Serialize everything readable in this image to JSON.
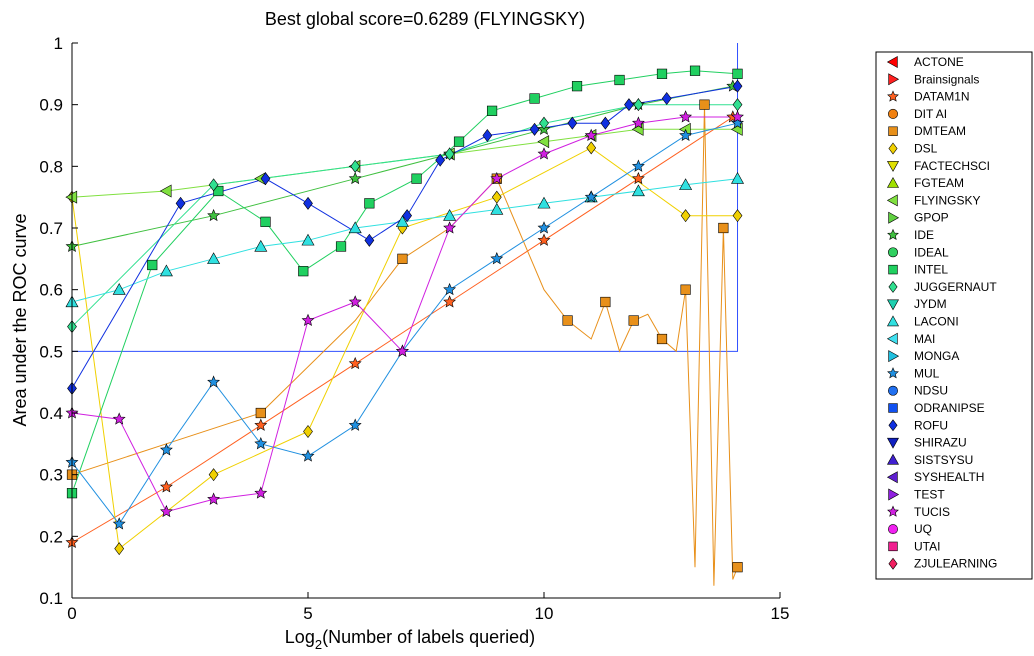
{
  "chart_data": {
    "type": "line",
    "title": "Best global score=0.6289 (FLYINGSKY)",
    "xlabel_main": "Log",
    "xlabel_sub": "2",
    "xlabel_rest": "(Number of labels queried)",
    "ylabel": "Area under the ROC curve",
    "xlim": [
      0,
      15
    ],
    "ylim": [
      0.1,
      1
    ],
    "xticks": [
      0,
      5,
      10,
      15
    ],
    "yticks": [
      0.1,
      0.2,
      0.3,
      0.4,
      0.5,
      0.6,
      0.7,
      0.8,
      0.9,
      1
    ],
    "ytick_labels": [
      "0.1",
      "0.2",
      "0.3",
      "0.4",
      "0.5",
      "0.6",
      "0.7",
      "0.8",
      "0.9",
      "1"
    ],
    "grid": false,
    "legend_position": "right-outside",
    "baseline": {
      "y": 0.5,
      "x_end": 14.1,
      "color": "#3050ff"
    },
    "series": [
      {
        "name": "ACTONE",
        "color": "#ff0000",
        "marker": "tri-left",
        "x": [],
        "y": []
      },
      {
        "name": "Brainsignals",
        "color": "#ff2020",
        "marker": "tri-right",
        "x": [],
        "y": []
      },
      {
        "name": "DATAM1N",
        "color": "#ff6020",
        "marker": "star",
        "x": [
          0,
          2,
          4,
          6,
          8,
          10,
          12,
          14
        ],
        "y": [
          0.19,
          0.28,
          0.38,
          0.48,
          0.58,
          0.68,
          0.78,
          0.88
        ]
      },
      {
        "name": "DIT AI",
        "color": "#f08010",
        "marker": "circle",
        "x": [],
        "y": []
      },
      {
        "name": "DMTEAM",
        "color": "#e8901a",
        "marker": "square",
        "x": [
          0,
          2,
          4,
          6,
          7,
          8,
          9,
          10,
          10.5,
          11,
          11.3,
          11.6,
          11.9,
          12.2,
          12.5,
          12.8,
          13.0,
          13.2,
          13.4,
          13.6,
          13.8,
          14.0,
          14.1
        ],
        "y": [
          0.3,
          0.35,
          0.4,
          0.55,
          0.65,
          0.7,
          0.78,
          0.6,
          0.55,
          0.52,
          0.58,
          0.5,
          0.55,
          0.56,
          0.52,
          0.5,
          0.6,
          0.15,
          0.9,
          0.12,
          0.7,
          0.13,
          0.15
        ]
      },
      {
        "name": "DSL",
        "color": "#f0d000",
        "marker": "diamond",
        "x": [
          0,
          1,
          3,
          5,
          7,
          9,
          11,
          13,
          14.1
        ],
        "y": [
          0.75,
          0.18,
          0.3,
          0.37,
          0.7,
          0.75,
          0.83,
          0.72,
          0.72
        ]
      },
      {
        "name": "FACTECHSCI",
        "color": "#e0e000",
        "marker": "tri-down",
        "x": [],
        "y": []
      },
      {
        "name": "FGTEAM",
        "color": "#a0e000",
        "marker": "tri-up",
        "x": [],
        "y": []
      },
      {
        "name": "FLYINGSKY",
        "color": "#80e040",
        "marker": "tri-left",
        "x": [
          0,
          2,
          4,
          6,
          8,
          10,
          11,
          12,
          13,
          14.1
        ],
        "y": [
          0.75,
          0.76,
          0.78,
          0.8,
          0.82,
          0.84,
          0.85,
          0.86,
          0.86,
          0.86
        ]
      },
      {
        "name": "GPOP",
        "color": "#60d040",
        "marker": "tri-right",
        "x": [],
        "y": []
      },
      {
        "name": "IDE",
        "color": "#40c040",
        "marker": "star",
        "x": [
          0,
          3,
          6,
          8,
          10,
          12,
          14
        ],
        "y": [
          0.67,
          0.72,
          0.78,
          0.82,
          0.86,
          0.9,
          0.93
        ]
      },
      {
        "name": "IDEAL",
        "color": "#30d060",
        "marker": "circle",
        "x": [],
        "y": []
      },
      {
        "name": "INTEL",
        "color": "#20d060",
        "marker": "square",
        "x": [
          0,
          1.7,
          3.1,
          4.1,
          4.9,
          5.7,
          6.3,
          7.3,
          8.2,
          8.9,
          9.8,
          10.7,
          11.6,
          12.5,
          13.2,
          14.1
        ],
        "y": [
          0.27,
          0.64,
          0.76,
          0.71,
          0.63,
          0.67,
          0.74,
          0.78,
          0.84,
          0.89,
          0.91,
          0.93,
          0.94,
          0.95,
          0.955,
          0.95
        ]
      },
      {
        "name": "JUGGERNAUT",
        "color": "#30e090",
        "marker": "diamond",
        "x": [
          0,
          3,
          6,
          8,
          10,
          12,
          14.1
        ],
        "y": [
          0.54,
          0.77,
          0.8,
          0.82,
          0.87,
          0.9,
          0.9
        ]
      },
      {
        "name": "JYDM",
        "color": "#20d0b0",
        "marker": "tri-down",
        "x": [],
        "y": []
      },
      {
        "name": "LACONI",
        "color": "#30e0e0",
        "marker": "tri-up",
        "x": [
          0,
          1,
          2,
          3,
          4,
          5,
          6,
          7,
          8,
          9,
          10,
          11,
          12,
          13,
          14.1
        ],
        "y": [
          0.58,
          0.6,
          0.63,
          0.65,
          0.67,
          0.68,
          0.7,
          0.71,
          0.72,
          0.73,
          0.74,
          0.75,
          0.76,
          0.77,
          0.78
        ]
      },
      {
        "name": "MAI",
        "color": "#40e0f0",
        "marker": "tri-left",
        "x": [],
        "y": []
      },
      {
        "name": "MONGA",
        "color": "#20c0e0",
        "marker": "tri-right",
        "x": [],
        "y": []
      },
      {
        "name": "MUL",
        "color": "#2090e0",
        "marker": "star",
        "x": [
          0,
          1,
          2,
          3,
          4,
          5,
          6,
          7,
          8,
          9,
          10,
          11,
          12,
          13,
          14.1
        ],
        "y": [
          0.32,
          0.22,
          0.34,
          0.45,
          0.35,
          0.33,
          0.38,
          0.5,
          0.6,
          0.65,
          0.7,
          0.75,
          0.8,
          0.85,
          0.87
        ]
      },
      {
        "name": "NDSU",
        "color": "#2070f0",
        "marker": "circle",
        "x": [],
        "y": []
      },
      {
        "name": "ODRANIPSE",
        "color": "#1050f0",
        "marker": "square",
        "x": [],
        "y": []
      },
      {
        "name": "ROFU",
        "color": "#1030e0",
        "marker": "diamond",
        "x": [
          0,
          2.3,
          4.1,
          5,
          6.3,
          7.1,
          7.8,
          8.8,
          9.8,
          10.6,
          11.3,
          11.8,
          12.6,
          14.1
        ],
        "y": [
          0.44,
          0.74,
          0.78,
          0.74,
          0.68,
          0.72,
          0.81,
          0.85,
          0.86,
          0.87,
          0.87,
          0.9,
          0.91,
          0.93
        ]
      },
      {
        "name": "SHIRAZU",
        "color": "#1020c0",
        "marker": "tri-down",
        "x": [],
        "y": []
      },
      {
        "name": "SISTSYSU",
        "color": "#4020d0",
        "marker": "tri-up",
        "x": [],
        "y": []
      },
      {
        "name": "SYSHEALTH",
        "color": "#6020d0",
        "marker": "tri-left",
        "x": [],
        "y": []
      },
      {
        "name": "TEST",
        "color": "#9020e0",
        "marker": "tri-right",
        "x": [],
        "y": []
      },
      {
        "name": "TUCIS",
        "color": "#d020e0",
        "marker": "star",
        "x": [
          0,
          1,
          2,
          3,
          4,
          5,
          6,
          7,
          8,
          9,
          10,
          11,
          12,
          13,
          14.1
        ],
        "y": [
          0.4,
          0.39,
          0.24,
          0.26,
          0.27,
          0.55,
          0.58,
          0.5,
          0.7,
          0.78,
          0.82,
          0.85,
          0.87,
          0.88,
          0.88
        ]
      },
      {
        "name": "UQ",
        "color": "#f020f0",
        "marker": "circle",
        "x": [],
        "y": []
      },
      {
        "name": "UTAI",
        "color": "#f02090",
        "marker": "square",
        "x": [],
        "y": []
      },
      {
        "name": "ZJULEARNING",
        "color": "#f02060",
        "marker": "diamond",
        "x": [],
        "y": []
      }
    ]
  }
}
